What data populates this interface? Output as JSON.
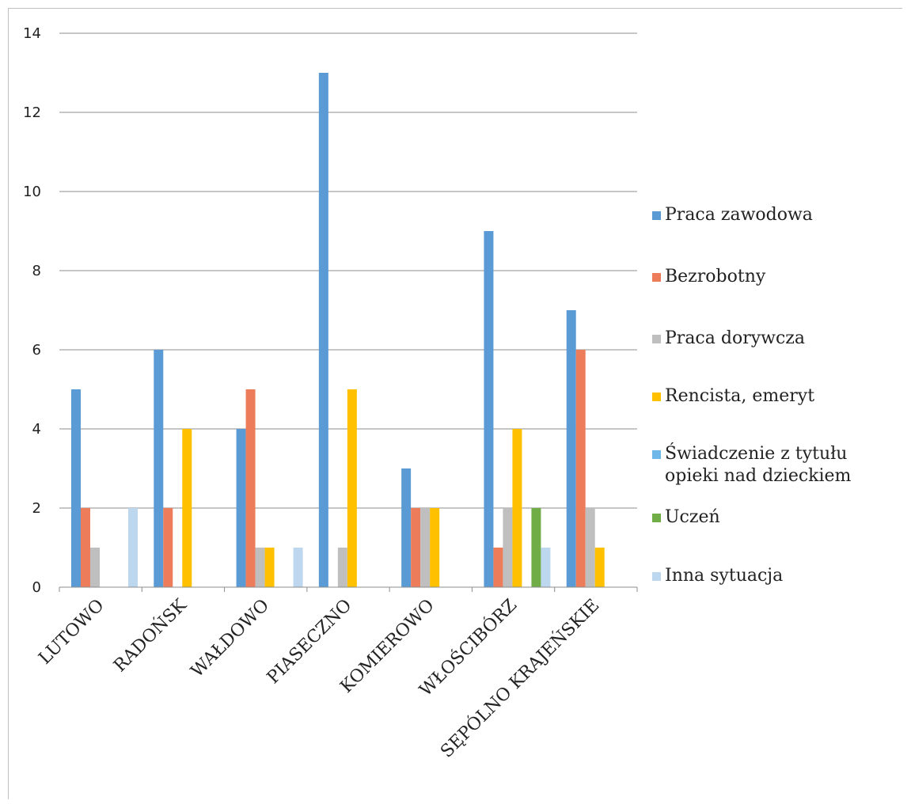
{
  "chart_data": {
    "type": "bar",
    "categories": [
      "LUTOWO",
      "RADOŃSK",
      "WAŁDOWO",
      "PIASECZNO",
      "KOMIEROWO",
      "WŁOŚCIBÓRZ",
      "SĘPÓLNO KRAJEŃSKIE"
    ],
    "series": [
      {
        "name": "Praca zawodowa",
        "color": "#5b9bd5",
        "values": [
          5,
          6,
          4,
          13,
          3,
          9,
          7
        ]
      },
      {
        "name": "Bezrobotny",
        "color": "#ed7d5a",
        "values": [
          2,
          2,
          5,
          0,
          2,
          1,
          6
        ]
      },
      {
        "name": "Praca dorywcza",
        "color": "#bfbfbf",
        "values": [
          1,
          0,
          1,
          1,
          2,
          2,
          2
        ]
      },
      {
        "name": "Rencista, emeryt",
        "color": "#ffc000",
        "values": [
          0,
          4,
          1,
          5,
          2,
          4,
          1
        ]
      },
      {
        "name": "Świadczenie z tytułu opieki nad dzieckiem",
        "label_lines": [
          "Świadczenie z tytułu",
          "opieki nad dzieckiem"
        ],
        "color": "#6fb7e8",
        "values": [
          0,
          0,
          0,
          0,
          0,
          0,
          0
        ]
      },
      {
        "name": "Uczeń",
        "color": "#70ad47",
        "values": [
          0,
          0,
          0,
          0,
          0,
          2,
          0
        ]
      },
      {
        "name": "Inna sytuacja",
        "color": "#bdd7ee",
        "values": [
          2,
          0,
          1,
          0,
          0,
          1,
          0
        ]
      }
    ],
    "title": "",
    "xlabel": "",
    "ylabel": "",
    "ylim": [
      0,
      14
    ],
    "yticks": [
      0,
      2,
      4,
      6,
      8,
      10,
      12,
      14
    ],
    "grid": true,
    "legend_position": "right"
  }
}
